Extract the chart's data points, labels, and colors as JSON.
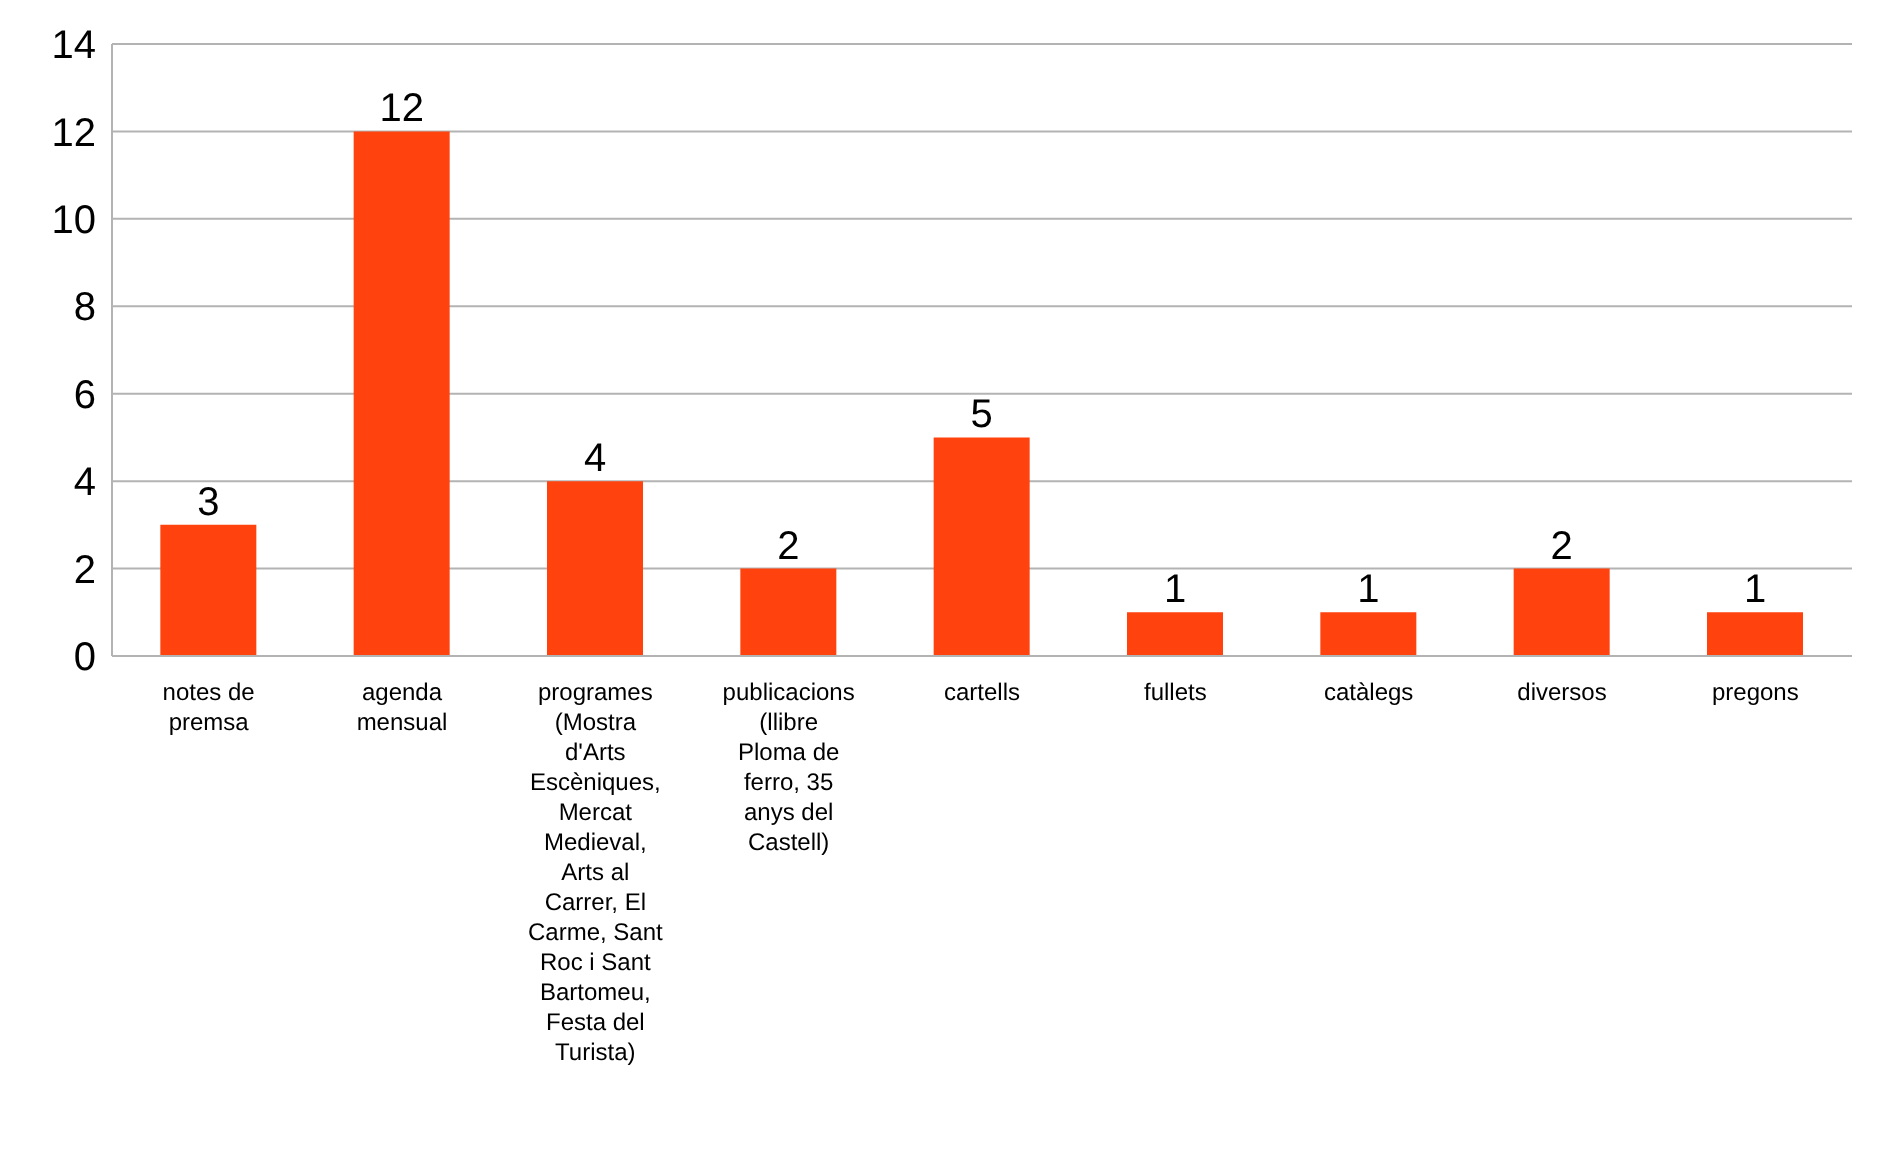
{
  "chart_data": {
    "type": "bar",
    "categories": [
      "notes de premsa",
      "agenda mensual",
      "programes (Mostra d'Arts Escèniques, Mercat Medieval, Arts al Carrer, El Carme, Sant Roc i Sant Bartomeu, Festa del Turista)",
      "publicacions (llibre Ploma de ferro, 35 anys del Castell)",
      "cartells",
      "fullets",
      "catàlegs",
      "diversos",
      "pregons"
    ],
    "values": [
      3,
      12,
      4,
      2,
      5,
      1,
      1,
      2,
      1
    ],
    "color": "#ff420e",
    "ylim": [
      0,
      14
    ],
    "yticks": [
      0,
      2,
      4,
      6,
      8,
      10,
      12,
      14
    ],
    "grid": "y",
    "data_labels": true,
    "legend": false
  }
}
